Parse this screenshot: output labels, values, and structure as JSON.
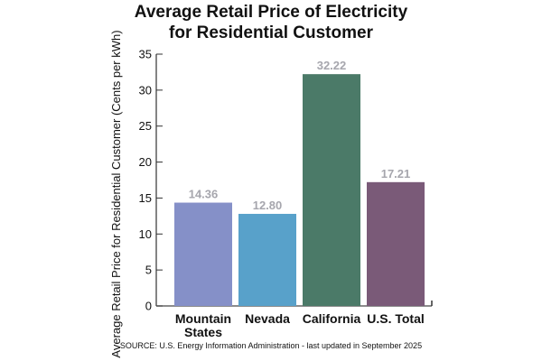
{
  "chart_data": {
    "type": "bar",
    "title_lines": [
      "Average Retail Price of Electricity",
      "for Residential Customer"
    ],
    "xlabel": "",
    "ylabel": "Average Retail Price for Residential Customer (Cents per kWh)",
    "categories": [
      [
        "Mountain",
        "States"
      ],
      [
        "Nevada"
      ],
      [
        "California"
      ],
      [
        "U.S. Total"
      ]
    ],
    "values": [
      14.36,
      12.8,
      32.22,
      17.21
    ],
    "value_labels": [
      "14.36",
      "12.80",
      "32.22",
      "17.21"
    ],
    "colors": [
      "#8590c8",
      "#58a1ca",
      "#4b7a68",
      "#7a5a78"
    ],
    "ylim": [
      0,
      35
    ],
    "yticks": [
      0,
      5,
      10,
      15,
      20,
      25,
      30,
      35
    ],
    "grid": false,
    "legend": "none",
    "source": "SOURCE: U.S. Energy Information Administration - last updated in September 2025"
  }
}
